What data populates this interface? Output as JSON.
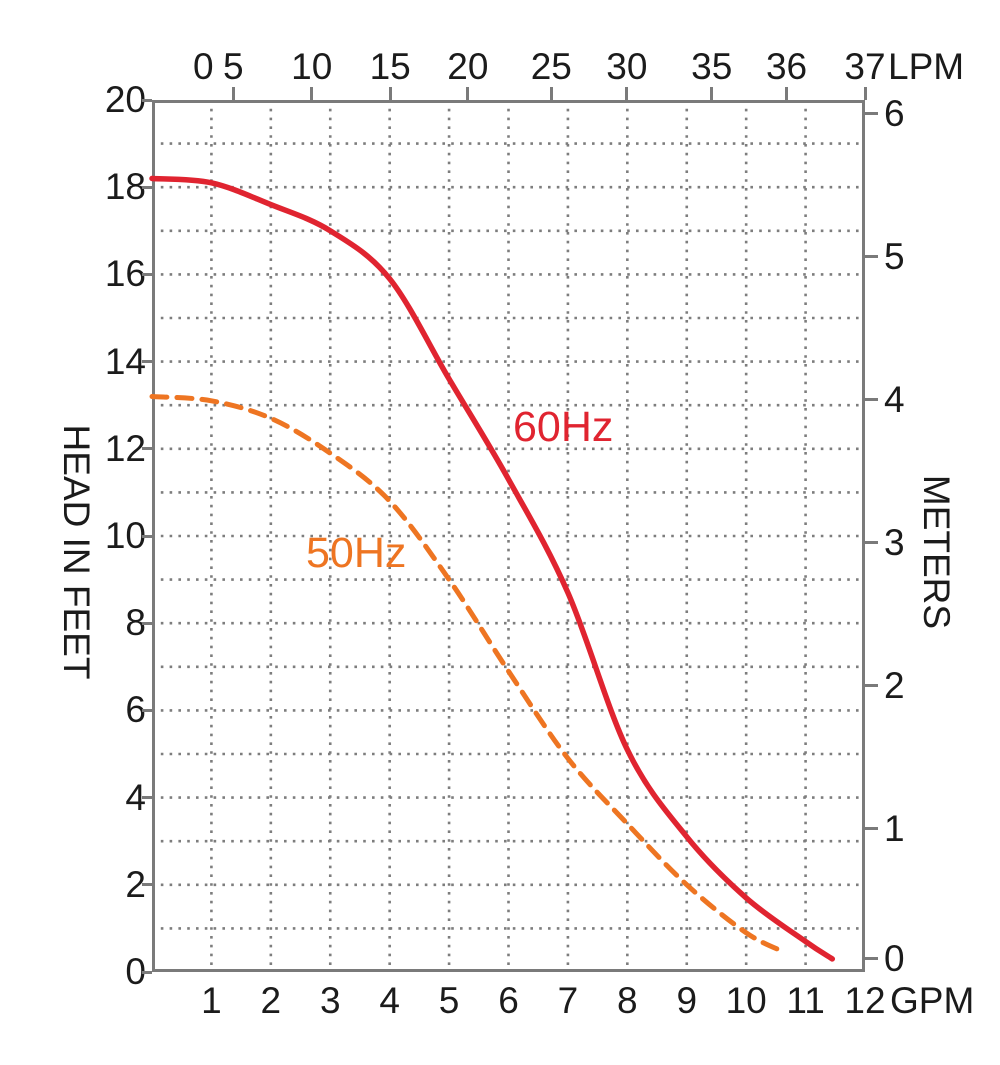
{
  "chart_data": {
    "type": "line",
    "title": "",
    "grid": {
      "on": true,
      "color": "#7d7d7d",
      "x_step": 1,
      "y_step": 1
    },
    "axes": {
      "bottom": {
        "unit": "GPM",
        "range": [
          0,
          12
        ],
        "labels": [
          "1",
          "2",
          "3",
          "4",
          "5",
          "6",
          "7",
          "8",
          "9",
          "10",
          "11",
          "12"
        ],
        "fracs": [
          0.0833,
          0.1667,
          0.25,
          0.3333,
          0.4167,
          0.5,
          0.5833,
          0.6667,
          0.75,
          0.8333,
          0.9167,
          1.0
        ]
      },
      "top": {
        "unit": "LPM",
        "labels": [
          "0",
          "5",
          "10",
          "15",
          "20",
          "25",
          "30",
          "35",
          "36",
          "37"
        ],
        "fracs": [
          0.072,
          0.114,
          0.224,
          0.334,
          0.443,
          0.56,
          0.666,
          0.785,
          0.89,
          1.0
        ],
        "tick_shown": [
          false,
          true,
          true,
          true,
          true,
          true,
          true,
          true,
          true,
          true
        ]
      },
      "left": {
        "title": "HEAD IN FEET",
        "range": [
          0,
          20
        ],
        "labels": [
          "20",
          "18",
          "16",
          "14",
          "12",
          "10",
          "8",
          "6",
          "4",
          "2",
          "0"
        ],
        "fracs": [
          0.0,
          0.1,
          0.2,
          0.3,
          0.4,
          0.5,
          0.6,
          0.7,
          0.8,
          0.9,
          1.0
        ]
      },
      "right": {
        "title": "METERS",
        "labels": [
          "6",
          "5",
          "4",
          "3",
          "2",
          "1",
          "0"
        ],
        "fracs": [
          0.016,
          0.18,
          0.344,
          0.508,
          0.672,
          0.836,
          0.985
        ]
      }
    },
    "series": [
      {
        "name": "60Hz",
        "color": "#e02430",
        "line_style": "solid",
        "points_gpm_ft": [
          [
            0,
            18.2
          ],
          [
            1,
            18.1
          ],
          [
            2,
            17.6
          ],
          [
            3,
            17.0
          ],
          [
            4,
            15.9
          ],
          [
            5,
            13.6
          ],
          [
            6,
            11.3
          ],
          [
            7,
            8.7
          ],
          [
            8,
            5.1
          ],
          [
            9,
            3.1
          ],
          [
            10,
            1.7
          ],
          [
            11,
            0.7
          ],
          [
            11.45,
            0.3
          ]
        ]
      },
      {
        "name": "50Hz",
        "color": "#ee7522",
        "line_style": "dashed",
        "points_gpm_ft": [
          [
            0,
            13.2
          ],
          [
            1,
            13.1
          ],
          [
            2,
            12.7
          ],
          [
            3,
            11.9
          ],
          [
            4,
            10.8
          ],
          [
            5,
            9.0
          ],
          [
            6,
            6.9
          ],
          [
            7,
            4.9
          ],
          [
            8,
            3.4
          ],
          [
            9,
            2.0
          ],
          [
            10,
            0.9
          ],
          [
            10.65,
            0.45
          ]
        ]
      }
    ],
    "frame_color": "#7a7a7a",
    "text_color": "#1b1b1b"
  }
}
